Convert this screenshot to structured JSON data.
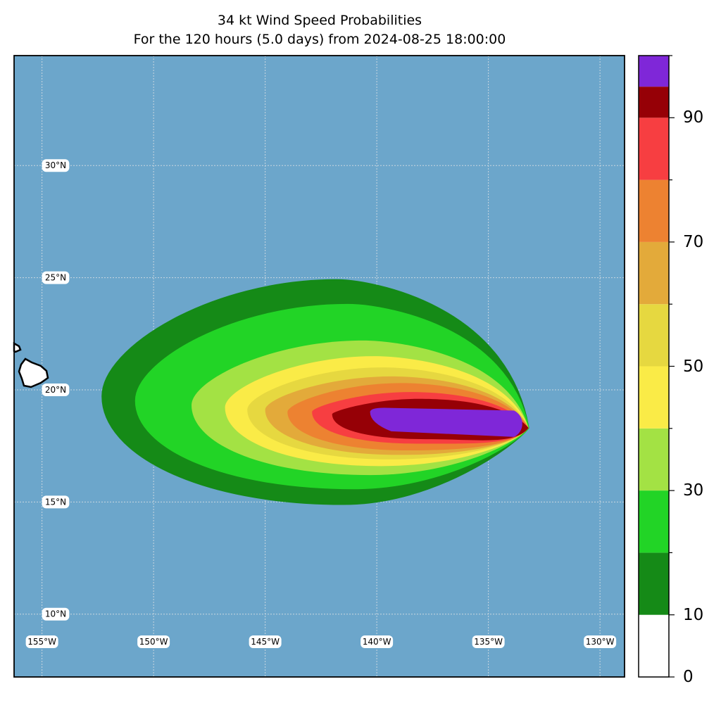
{
  "title": {
    "line1": "34 kt Wind Speed Probabilities",
    "line2": "For the 120 hours (5.0 days) from 2024-08-25 18:00:00"
  },
  "map": {
    "ocean_color": "#6ca6cb",
    "land_color": "#ffffff",
    "lat_labels": [
      {
        "text": "30°N",
        "lat": 30
      },
      {
        "text": "25°N",
        "lat": 25
      },
      {
        "text": "20°N",
        "lat": 20
      },
      {
        "text": "15°N",
        "lat": 15
      },
      {
        "text": "10°N",
        "lat": 10
      }
    ],
    "lon_labels": [
      {
        "text": "155°W",
        "lon": -155
      },
      {
        "text": "150°W",
        "lon": -150
      },
      {
        "text": "145°W",
        "lon": -145
      },
      {
        "text": "140°W",
        "lon": -140
      },
      {
        "text": "135°W",
        "lon": -135
      },
      {
        "text": "130°W",
        "lon": -130
      }
    ],
    "lon_range": [
      -156.25,
      -128.9
    ],
    "lat_range": [
      7.2,
      34.9
    ]
  },
  "colorbar": {
    "min": 0,
    "max": 100,
    "bins": [
      {
        "from": 0,
        "to": 10,
        "color": "#ffffff"
      },
      {
        "from": 10,
        "to": 20,
        "color": "#158a17"
      },
      {
        "from": 20,
        "to": 30,
        "color": "#22d426"
      },
      {
        "from": 30,
        "to": 40,
        "color": "#a3e244"
      },
      {
        "from": 40,
        "to": 50,
        "color": "#faeb47"
      },
      {
        "from": 50,
        "to": 60,
        "color": "#e6d840"
      },
      {
        "from": 60,
        "to": 70,
        "color": "#e3aa3a"
      },
      {
        "from": 70,
        "to": 80,
        "color": "#ed8231"
      },
      {
        "from": 80,
        "to": 90,
        "color": "#f73e41"
      },
      {
        "from": 90,
        "to": 95,
        "color": "#960006"
      },
      {
        "from": 95,
        "to": 100,
        "color": "#7f27d8"
      }
    ],
    "tick_labels": [
      "0",
      "10",
      "30",
      "50",
      "70",
      "90"
    ],
    "tick_values": [
      0,
      10,
      30,
      50,
      70,
      90
    ]
  },
  "chart_data": {
    "type": "heatmap",
    "title": "34 kt Wind Speed Probabilities",
    "subtitle": "For the 120 hours (5.0 days) from 2024-08-25 18:00:00",
    "colorbar_range": [
      0,
      100
    ],
    "probability_contours": [
      {
        "level": 5,
        "color": "#158a17",
        "center_lon": -141.5,
        "center_lat": 19.4,
        "west_lon": -152.3,
        "north_lat": 24.9,
        "south_lat": 14.9
      },
      {
        "level": 10,
        "color": "#22d426",
        "center_lon": -141.0,
        "center_lat": 19.2,
        "west_lon": -150.8,
        "north_lat": 23.8,
        "south_lat": 15.6
      },
      {
        "level": 20,
        "color": "#a3e244",
        "center_lon": -140.3,
        "center_lat": 19.0,
        "west_lon": -148.3,
        "north_lat": 22.2,
        "south_lat": 16.2
      },
      {
        "level": 30,
        "color": "#faeb47",
        "center_lon": -139.8,
        "center_lat": 18.9,
        "west_lon": -146.8,
        "north_lat": 21.5,
        "south_lat": 16.6
      },
      {
        "level": 40,
        "color": "#e6d840",
        "center_lon": -139.4,
        "center_lat": 18.8,
        "west_lon": -145.8,
        "north_lat": 21.0,
        "south_lat": 16.9
      },
      {
        "level": 50,
        "color": "#e3aa3a",
        "center_lon": -139.0,
        "center_lat": 18.8,
        "west_lon": -145.0,
        "north_lat": 20.6,
        "south_lat": 17.1
      },
      {
        "level": 60,
        "color": "#ed8231",
        "center_lon": -138.6,
        "center_lat": 18.7,
        "west_lon": -144.0,
        "north_lat": 20.3,
        "south_lat": 17.3
      },
      {
        "level": 70,
        "color": "#f73e41",
        "center_lon": -138.2,
        "center_lat": 18.7,
        "west_lon": -142.9,
        "north_lat": 19.9,
        "south_lat": 17.6
      },
      {
        "level": 80,
        "color": "#960006",
        "center_lon": -137.8,
        "center_lat": 18.6,
        "west_lon": -142.0,
        "north_lat": 19.6,
        "south_lat": 17.8
      },
      {
        "level": 90,
        "color": "#7f27d8",
        "center_lon": -136.5,
        "center_lat": 18.5,
        "west_lon": -140.3,
        "north_lat": 19.2,
        "south_lat": 17.9
      }
    ],
    "storm_east_tip": {
      "lon": -133.2,
      "lat": 18.3
    }
  }
}
